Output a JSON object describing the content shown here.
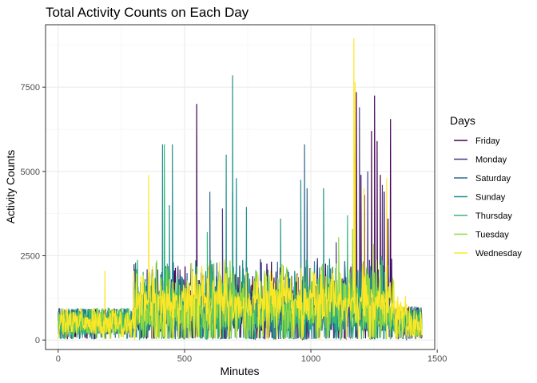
{
  "chart_data": {
    "type": "line",
    "title": "Total Activity Counts on Each Day",
    "xlabel": "Minutes",
    "ylabel": "Activity Counts",
    "xlim": [
      -50,
      1490
    ],
    "ylim": [
      -280,
      9350
    ],
    "x_ticks": [
      0,
      500,
      1000,
      1500
    ],
    "x_tick_labels": [
      "0",
      "500",
      "1000",
      "1500"
    ],
    "y_ticks": [
      0,
      2500,
      5000,
      7500
    ],
    "y_tick_labels": [
      "0",
      "2500",
      "5000",
      "7500"
    ],
    "grid": true,
    "legend_title": "Days",
    "legend_position": "right",
    "series": [
      {
        "name": "Friday",
        "color": "#440154",
        "peaks": [
          [
            548,
            7000
          ],
          [
            548,
            5250
          ],
          [
            1180,
            7350
          ],
          [
            1198,
            4900
          ],
          [
            1212,
            4300
          ],
          [
            1240,
            6200
          ],
          [
            1252,
            7250
          ],
          [
            1262,
            5900
          ],
          [
            1275,
            4900
          ],
          [
            1290,
            4400
          ],
          [
            1305,
            3600
          ],
          [
            1315,
            6550
          ]
        ]
      },
      {
        "name": "Monday",
        "color": "#443983",
        "peaks": [
          [
            650,
            3900
          ],
          [
            800,
            2400
          ],
          [
            1100,
            2900
          ],
          [
            1192,
            6900
          ],
          [
            1225,
            5000
          ],
          [
            1283,
            4600
          ]
        ]
      },
      {
        "name": "Saturday",
        "color": "#31688E",
        "peaks": [
          [
            600,
            4400
          ],
          [
            690,
            4400
          ],
          [
            975,
            5800
          ],
          [
            985,
            4500
          ],
          [
            1172,
            5500
          ]
        ]
      },
      {
        "name": "Sunday",
        "color": "#21908C",
        "peaks": [
          [
            413,
            5800
          ],
          [
            440,
            4000
          ],
          [
            452,
            5800
          ],
          [
            665,
            5500
          ],
          [
            690,
            7850
          ],
          [
            705,
            4800
          ],
          [
            745,
            3950
          ],
          [
            880,
            3600
          ],
          [
            960,
            4750
          ],
          [
            1050,
            4500
          ]
        ]
      },
      {
        "name": "Thursday",
        "color": "#35B779",
        "peaks": [
          [
            420,
            5800
          ],
          [
            1145,
            3700
          ],
          [
            590,
            3200
          ]
        ]
      },
      {
        "name": "Tuesday",
        "color": "#8FD744",
        "peaks": [
          [
            1110,
            3050
          ],
          [
            1165,
            3300
          ],
          [
            1248,
            2850
          ]
        ]
      },
      {
        "name": "Wednesday",
        "color": "#FDE725",
        "peaks": [
          [
            185,
            2050
          ],
          [
            358,
            4900
          ],
          [
            1170,
            8950
          ],
          [
            1175,
            7650
          ],
          [
            1210,
            4500
          ],
          [
            1300,
            4800
          ]
        ]
      }
    ]
  }
}
